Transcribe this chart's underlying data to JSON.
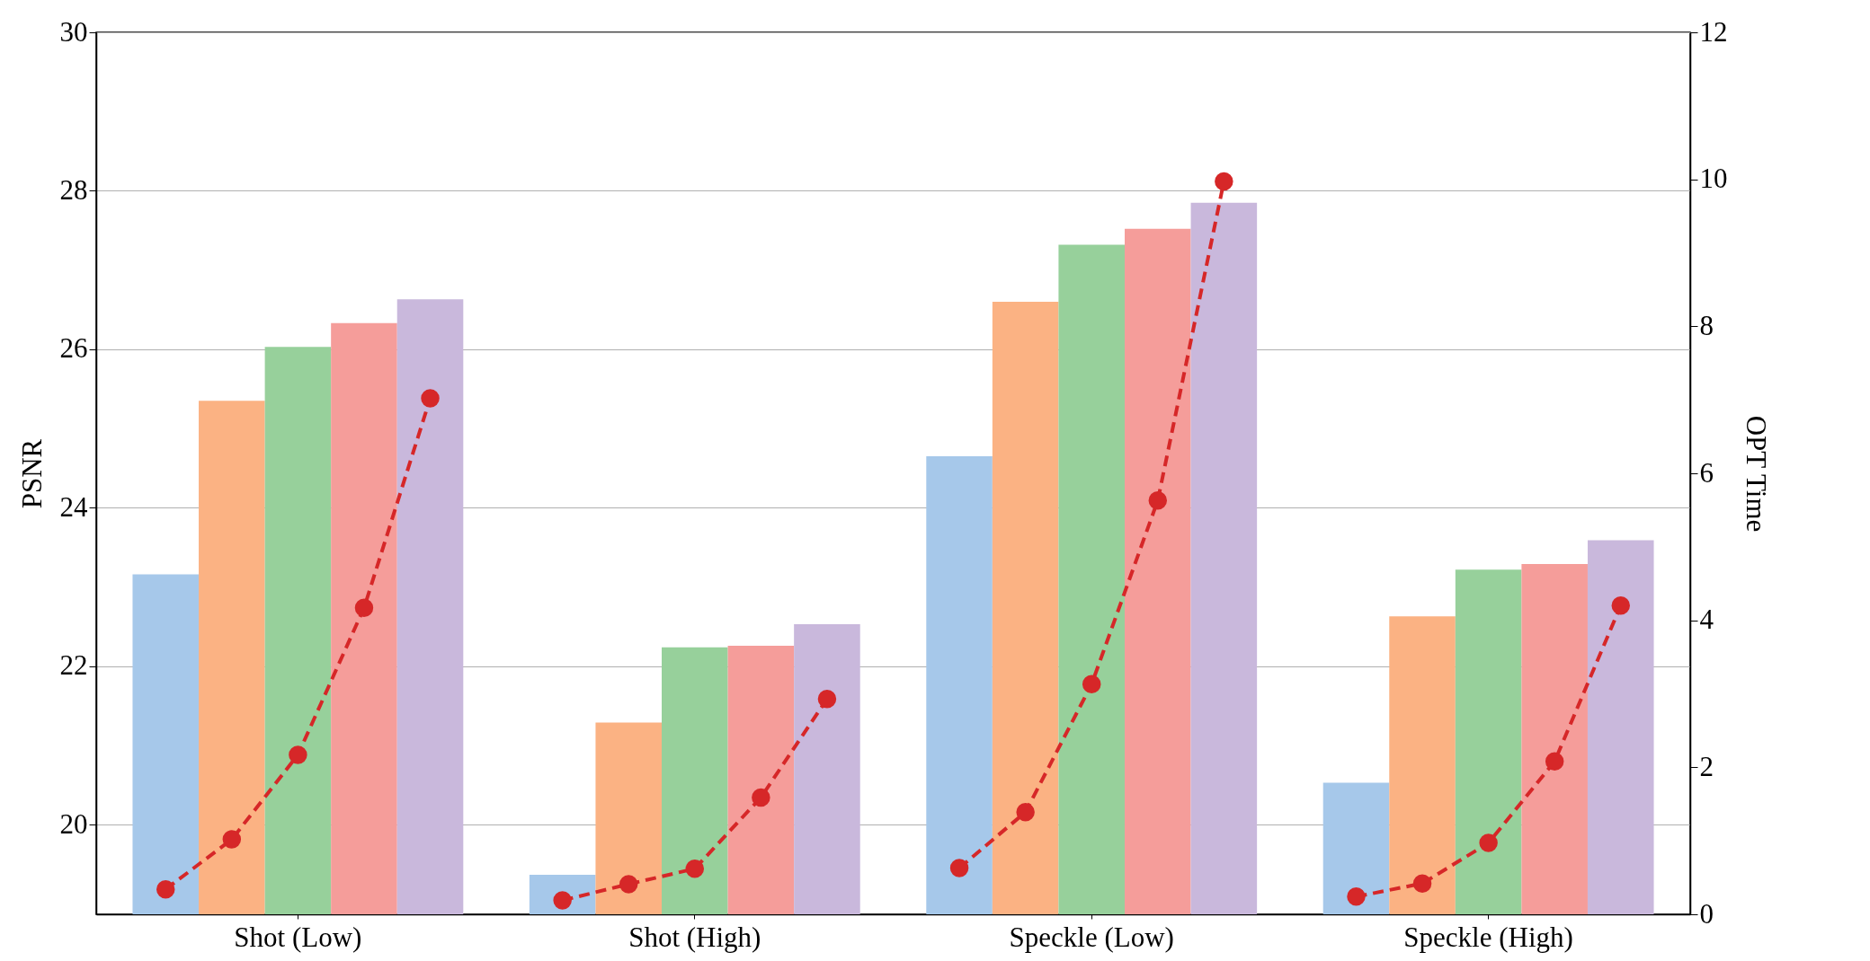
{
  "chart_data": {
    "type": "bar",
    "ylabel": "PSNR",
    "y2label": "OPT Time",
    "categories": [
      null,
      null,
      "Shot (Low)",
      null,
      null,
      null,
      null,
      null,
      "Shot (High)",
      null,
      null,
      null,
      null,
      null,
      "Speckle (Low)",
      null,
      null,
      null,
      null,
      null,
      "Speckle (High)",
      null,
      null
    ],
    "series": [
      {
        "values": [
          23.16,
          25.35,
          26.03,
          26.33,
          26.63,
          null,
          19.37,
          21.29,
          22.24,
          22.26,
          22.53,
          null,
          24.65,
          26.6,
          27.32,
          27.52,
          27.85,
          null,
          20.53,
          22.63,
          23.22,
          23.29,
          23.59
        ],
        "colors": [
          "#a6c8ea",
          "#fbb283",
          "#97d09b",
          "#f59d9a",
          "#c9b8dc",
          null,
          "#a6c8ea",
          "#fbb283",
          "#97d09b",
          "#f59d9a",
          "#c9b8dc",
          null,
          "#a6c8ea",
          "#fbb283",
          "#97d09b",
          "#f59d9a",
          "#c9b8dc",
          null,
          "#a6c8ea",
          "#fbb283",
          "#97d09b",
          "#f59d9a",
          "#c9b8dc"
        ]
      },
      {
        "type": "line",
        "axis": "y2",
        "color": "#d62728",
        "marker": "circle",
        "line_style": "dashed",
        "values": [
          0.34,
          1.02,
          2.17,
          4.17,
          7.02,
          null,
          0.19,
          0.41,
          0.62,
          1.59,
          2.93,
          null,
          0.63,
          1.39,
          3.13,
          5.63,
          9.97,
          null,
          0.24,
          0.42,
          0.97,
          2.08,
          4.2
        ]
      }
    ],
    "ylim": [
      18.87,
      30
    ],
    "yticks": [
      20,
      22,
      24,
      26,
      28,
      30
    ],
    "y2lim": [
      0,
      12
    ],
    "y2ticks": [
      0,
      2,
      4,
      6,
      8,
      10,
      12
    ],
    "grid": "y"
  }
}
